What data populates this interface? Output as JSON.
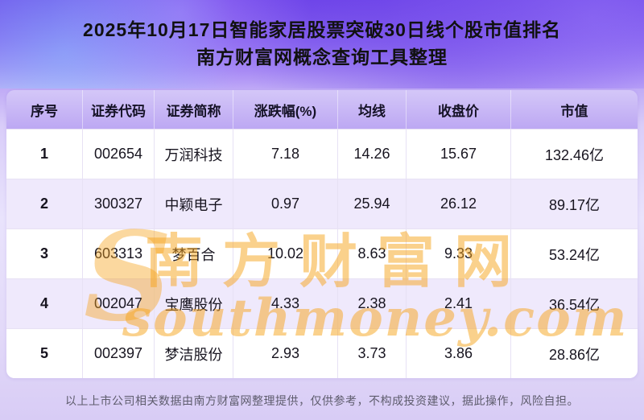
{
  "page": {
    "footer": "以上上市公司相关数据由南方财富网整理提供，仅供参考，不构成投资建议，据此操作，风险自担。"
  },
  "watermark": {
    "initial": "S",
    "line1": "南方财富网",
    "line2": "southmoney.com"
  },
  "colors": {
    "header_purple": "#7a53ef",
    "table_header_lavender": "#c5b2f5",
    "alt_row_lavender": "#efe9fc",
    "watermark_orange": "#f7a41c"
  },
  "chart_data": {
    "type": "table",
    "title": "2025年10月17日智能家居股票突破30日线个股市值排名",
    "subtitle": "南方财富网概念查询工具整理",
    "columns": [
      "序号",
      "证券代码",
      "证券简称",
      "涨跌幅(%)",
      "均线",
      "收盘价",
      "市值"
    ],
    "rows": [
      [
        "1",
        "002654",
        "万润科技",
        "7.18",
        "14.26",
        "15.67",
        "132.46亿"
      ],
      [
        "2",
        "300327",
        "中颖电子",
        "0.97",
        "25.94",
        "26.12",
        "89.17亿"
      ],
      [
        "3",
        "603313",
        "梦百合",
        "10.02",
        "8.63",
        "9.33",
        "53.24亿"
      ],
      [
        "4",
        "002047",
        "宝鹰股份",
        "4.33",
        "2.38",
        "2.41",
        "36.54亿"
      ],
      [
        "5",
        "002397",
        "梦洁股份",
        "2.93",
        "3.73",
        "3.86",
        "28.86亿"
      ]
    ]
  }
}
